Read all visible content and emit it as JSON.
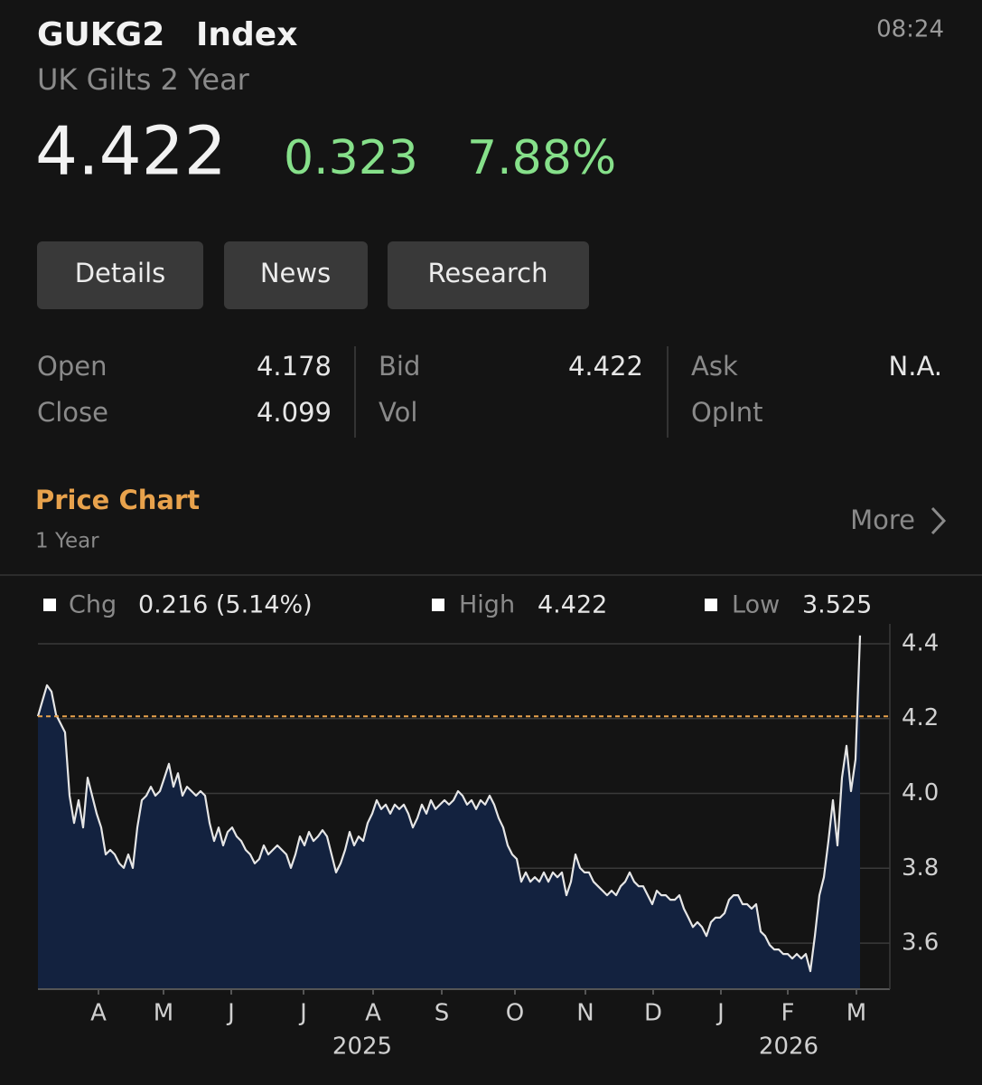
{
  "header": {
    "ticker": "GUKG2",
    "suffix": "Index",
    "name": "UK Gilts 2 Year",
    "time": "08:24",
    "price": "4.422",
    "change": "0.323",
    "change_pct": "7.88%"
  },
  "tabs": [
    "Details",
    "News",
    "Research"
  ],
  "quote": {
    "columns": [
      [
        {
          "label": "Open",
          "value": "4.178"
        },
        {
          "label": "Close",
          "value": "4.099"
        }
      ],
      [
        {
          "label": "Bid",
          "value": "4.422"
        },
        {
          "label": "Vol"
        }
      ],
      [
        {
          "label": "Ask",
          "value": "N.A."
        },
        {
          "label": "OpInt"
        }
      ]
    ]
  },
  "section": {
    "title": "Price Chart",
    "period": "1 Year",
    "more": "More"
  },
  "chart_data": {
    "type": "area",
    "stats": [
      {
        "label": "Chg",
        "value": "0.216 (5.14%)"
      },
      {
        "label": "High",
        "value": "4.422"
      },
      {
        "label": "Low",
        "value": "3.525"
      }
    ],
    "series": [
      {
        "color": "#e6e6e6",
        "fill": "#13223f",
        "values": [
          4.206,
          4.248,
          4.289,
          4.272,
          4.211,
          4.187,
          4.163,
          3.994,
          3.921,
          3.982,
          3.909,
          4.042,
          3.994,
          3.946,
          3.909,
          3.837,
          3.849,
          3.837,
          3.813,
          3.801,
          3.837,
          3.801,
          3.909,
          3.982,
          3.994,
          4.018,
          3.994,
          4.006,
          4.042,
          4.079,
          4.018,
          4.054,
          3.994,
          4.018,
          4.006,
          3.994,
          4.006,
          3.994,
          3.921,
          3.873,
          3.909,
          3.861,
          3.897,
          3.909,
          3.885,
          3.873,
          3.849,
          3.837,
          3.813,
          3.825,
          3.861,
          3.837,
          3.849,
          3.861,
          3.849,
          3.837,
          3.801,
          3.837,
          3.885,
          3.861,
          3.897,
          3.873,
          3.885,
          3.902,
          3.885,
          3.837,
          3.789,
          3.813,
          3.849,
          3.897,
          3.861,
          3.885,
          3.873,
          3.921,
          3.946,
          3.982,
          3.958,
          3.97,
          3.946,
          3.97,
          3.958,
          3.97,
          3.946,
          3.909,
          3.934,
          3.97,
          3.946,
          3.982,
          3.958,
          3.97,
          3.982,
          3.97,
          3.982,
          4.006,
          3.994,
          3.97,
          3.982,
          3.958,
          3.982,
          3.97,
          3.994,
          3.97,
          3.934,
          3.909,
          3.861,
          3.837,
          3.825,
          3.764,
          3.789,
          3.764,
          3.776,
          3.764,
          3.789,
          3.764,
          3.789,
          3.776,
          3.789,
          3.728,
          3.764,
          3.837,
          3.801,
          3.789,
          3.789,
          3.764,
          3.752,
          3.74,
          3.728,
          3.74,
          3.728,
          3.752,
          3.764,
          3.789,
          3.764,
          3.752,
          3.752,
          3.728,
          3.704,
          3.74,
          3.728,
          3.728,
          3.716,
          3.716,
          3.728,
          3.692,
          3.668,
          3.643,
          3.656,
          3.643,
          3.619,
          3.656,
          3.668,
          3.668,
          3.68,
          3.716,
          3.728,
          3.728,
          3.704,
          3.704,
          3.692,
          3.704,
          3.631,
          3.619,
          3.595,
          3.583,
          3.583,
          3.571,
          3.571,
          3.559,
          3.571,
          3.559,
          3.571,
          3.525,
          3.619,
          3.728,
          3.776,
          3.873,
          3.982,
          3.861,
          4.042,
          4.127,
          4.006,
          4.091,
          4.422
        ]
      }
    ],
    "reference_line": {
      "value": 4.206,
      "color": "#e8a24c"
    },
    "xlim": [
      0,
      188.6
    ],
    "xticks": [
      {
        "value": 13.4,
        "label": "A"
      },
      {
        "value": 27.8,
        "label": "M"
      },
      {
        "value": 42.8,
        "label": "J"
      },
      {
        "value": 58.8,
        "label": "J"
      },
      {
        "value": 74.2,
        "label": "A"
      },
      {
        "value": 89.4,
        "label": "S"
      },
      {
        "value": 105.6,
        "label": "O"
      },
      {
        "value": 121.2,
        "label": "N"
      },
      {
        "value": 136.2,
        "label": "D"
      },
      {
        "value": 151.2,
        "label": "J"
      },
      {
        "value": 166,
        "label": "F"
      },
      {
        "value": 181.2,
        "label": "M"
      }
    ],
    "year_ticks": [
      {
        "value": 71.8,
        "label": "2025"
      },
      {
        "value": 166.2,
        "label": "2026"
      }
    ],
    "ylim": [
      3.477,
      4.453
    ],
    "yticks": [
      3.6,
      3.8,
      {
        "value": 4,
        "label": "4.0"
      },
      4.2,
      4.4
    ],
    "grid": true
  }
}
